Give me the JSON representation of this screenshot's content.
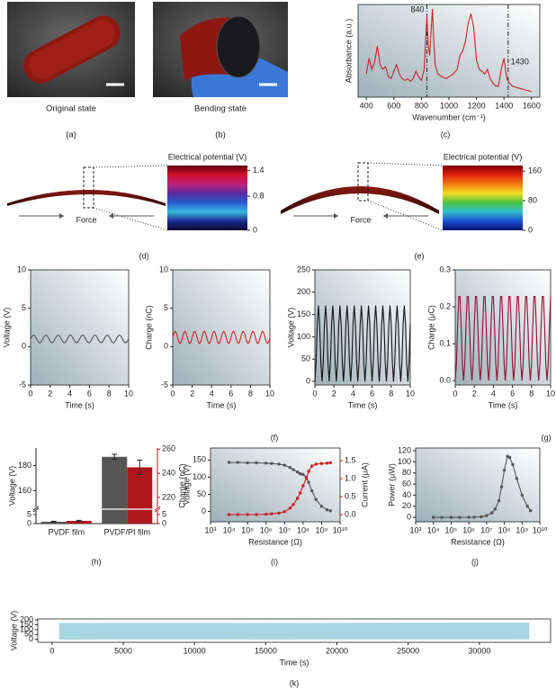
{
  "photos": [
    {
      "caption": "Original state",
      "label": "(a)"
    },
    {
      "caption": "Bending state",
      "label": "(b)"
    }
  ],
  "potential_maps": [
    {
      "title": "Electrical potential (V)",
      "force": "Force",
      "label": "(d)",
      "colorbar_lim": [
        0,
        1.52
      ],
      "colorbar_ticks": [
        0,
        0.8,
        1.4
      ],
      "colors": [
        "#5a0010",
        "#d0102a",
        "#c0207a",
        "#5a2aa0",
        "#2a5ad0",
        "#38b8e0",
        "#1a2a90",
        "#0a0a30"
      ]
    },
    {
      "title": "Electrical potential (V)",
      "force": "Force",
      "label": "(e)",
      "colorbar_lim": [
        0,
        175
      ],
      "colorbar_ticks": [
        0,
        80,
        160
      ],
      "colors": [
        "#7a0000",
        "#e02010",
        "#f07a10",
        "#f0e020",
        "#50c040",
        "#30c0d0",
        "#1a50d0",
        "#0a1070"
      ]
    }
  ],
  "chart_data": [
    {
      "type": "line",
      "label": "(c)",
      "xlabel": "Wavenumber (cm⁻¹)",
      "ylabel": "Absorbance (a.u.)",
      "color": "#c8202a",
      "x": [
        400,
        420,
        440,
        460,
        480,
        500,
        520,
        540,
        560,
        580,
        600,
        620,
        640,
        660,
        680,
        700,
        720,
        740,
        760,
        780,
        800,
        820,
        840,
        850,
        860,
        870,
        880,
        890,
        900,
        920,
        950,
        980,
        1000,
        1030,
        1060,
        1080,
        1100,
        1120,
        1140,
        1160,
        1180,
        1200,
        1220,
        1240,
        1260,
        1280,
        1300,
        1320,
        1340,
        1360,
        1380,
        1400,
        1420,
        1440,
        1460,
        1500,
        1550,
        1600
      ],
      "values": [
        0.25,
        0.42,
        0.3,
        0.38,
        0.55,
        0.35,
        0.3,
        0.33,
        0.22,
        0.2,
        0.28,
        0.35,
        0.25,
        0.2,
        0.18,
        0.2,
        0.17,
        0.2,
        0.28,
        0.22,
        0.18,
        0.3,
        0.88,
        0.55,
        0.45,
        0.7,
        0.95,
        0.6,
        0.35,
        0.25,
        0.22,
        0.2,
        0.22,
        0.25,
        0.3,
        0.45,
        0.5,
        0.6,
        0.8,
        0.9,
        0.75,
        0.4,
        0.3,
        0.28,
        0.25,
        0.3,
        0.2,
        0.15,
        0.12,
        0.12,
        0.3,
        0.42,
        0.2,
        0.15,
        0.12,
        0.1,
        0.08,
        0.06
      ],
      "xlim": [
        340,
        1660
      ],
      "ylim": [
        0,
        1
      ],
      "xticks": [
        400,
        600,
        800,
        1000,
        1200,
        1400,
        1600
      ],
      "vlines": [
        840,
        1430
      ]
    },
    {
      "type": "line",
      "xlabel": "Time (s)",
      "ylabel": "Voltage (V)",
      "color": "#555555",
      "x": [
        0,
        0.125,
        0.25,
        0.375,
        0.5,
        0.625,
        0.75,
        0.875,
        1,
        1.125,
        1.25,
        1.375,
        1.5,
        1.625,
        1.75,
        1.875,
        2,
        2.125,
        2.25,
        2.375,
        2.5,
        2.625,
        2.75,
        2.875,
        3,
        3.125,
        3.25,
        3.375,
        3.5,
        3.625,
        3.75,
        3.875,
        4,
        4.125,
        4.25,
        4.375,
        4.5,
        4.625,
        4.75,
        4.875,
        5,
        5.125,
        5.25,
        5.375,
        5.5,
        5.625,
        5.75,
        5.875,
        6,
        6.125,
        6.25,
        6.375,
        6.5,
        6.625,
        6.75,
        6.875,
        7,
        7.125,
        7.25,
        7.375,
        7.5,
        7.625,
        7.75,
        7.875,
        8,
        8.125,
        8.25,
        8.375,
        8.5,
        8.625,
        8.75,
        8.875,
        9,
        9.125,
        9.25,
        9.375,
        9.5,
        9.625,
        9.75,
        9.875,
        10
      ],
      "values": [
        1,
        1.29,
        1.48,
        1.48,
        1.29,
        1,
        0.71,
        0.52,
        0.52,
        0.71,
        1,
        1.29,
        1.48,
        1.48,
        1.29,
        1,
        0.71,
        0.52,
        0.52,
        0.71,
        1,
        1.29,
        1.48,
        1.48,
        1.29,
        1,
        0.71,
        0.52,
        0.52,
        0.71,
        1,
        1.29,
        1.48,
        1.48,
        1.29,
        1,
        0.71,
        0.52,
        0.52,
        0.71,
        1,
        1.29,
        1.48,
        1.48,
        1.29,
        1,
        0.71,
        0.52,
        0.52,
        0.71,
        1,
        1.29,
        1.48,
        1.48,
        1.29,
        1,
        0.71,
        0.52,
        0.52,
        0.71,
        1,
        1.29,
        1.48,
        1.48,
        1.29,
        1,
        0.71,
        0.52,
        0.52,
        0.71,
        1,
        1.29,
        1.48,
        1.48,
        1.29,
        1,
        0.71,
        0.52,
        0.52,
        0.71,
        1
      ],
      "xlim": [
        0,
        10
      ],
      "ylim": [
        -5,
        10
      ],
      "xticks": [
        0,
        2,
        4,
        6,
        8,
        10
      ],
      "yticks": [
        -5,
        0,
        5,
        10
      ]
    },
    {
      "type": "line",
      "label": "(f)",
      "xlabel": "Time (s)",
      "ylabel": "Charge (nC)",
      "color": "#d0202a",
      "x": [
        0,
        0.125,
        0.25,
        0.375,
        0.5,
        0.625,
        0.75,
        0.875,
        1,
        1.125,
        1.25,
        1.375,
        1.5,
        1.625,
        1.75,
        1.875,
        2,
        2.125,
        2.25,
        2.375,
        2.5,
        2.625,
        2.75,
        2.875,
        3,
        3.125,
        3.25,
        3.375,
        3.5,
        3.625,
        3.75,
        3.875,
        4,
        4.125,
        4.25,
        4.375,
        4.5,
        4.625,
        4.75,
        4.875,
        5,
        5.125,
        5.25,
        5.375,
        5.5,
        5.625,
        5.75,
        5.875,
        6,
        6.125,
        6.25,
        6.375,
        6.5,
        6.625,
        6.75,
        6.875,
        7,
        7.125,
        7.25,
        7.375,
        7.5,
        7.625,
        7.75,
        7.875,
        8,
        8.125,
        8.25,
        8.375,
        8.5,
        8.625,
        8.75,
        8.875,
        9,
        9.125,
        9.25,
        9.375,
        9.5,
        9.625,
        9.75,
        9.875,
        10
      ],
      "values": [
        1.2,
        1.77,
        2,
        1.77,
        1.2,
        0.63,
        0.4,
        0.63,
        1.2,
        1.77,
        2,
        1.77,
        1.2,
        0.63,
        0.4,
        0.63,
        1.2,
        1.77,
        2,
        1.77,
        1.2,
        0.63,
        0.4,
        0.63,
        1.2,
        1.77,
        2,
        1.77,
        1.2,
        0.63,
        0.4,
        0.63,
        1.2,
        1.77,
        2,
        1.77,
        1.2,
        0.63,
        0.4,
        0.63,
        1.2,
        1.77,
        2,
        1.77,
        1.2,
        0.63,
        0.4,
        0.63,
        1.2,
        1.77,
        2,
        1.77,
        1.2,
        0.63,
        0.4,
        0.63,
        1.2,
        1.77,
        2,
        1.77,
        1.2,
        0.63,
        0.4,
        0.63,
        1.2,
        1.77,
        2,
        1.77,
        1.2,
        0.63,
        0.4,
        0.63,
        1.2,
        1.77,
        2,
        1.77,
        1.2,
        0.63,
        0.4,
        0.63,
        1.2
      ],
      "xlim": [
        0,
        10
      ],
      "ylim": [
        -5,
        10
      ],
      "xticks": [
        0,
        2,
        4,
        6,
        8,
        10
      ],
      "yticks": [
        -5,
        0,
        5,
        10
      ]
    },
    {
      "type": "line",
      "xlabel": "Time (s)",
      "ylabel": "Voltage (V)",
      "color": "#111111",
      "x": [
        0,
        0.125,
        0.25,
        0.375,
        0.5,
        0.625,
        0.75,
        0.875,
        1,
        1.125,
        1.25,
        1.375,
        1.5,
        1.625,
        1.75,
        1.875,
        2,
        2.125,
        2.25,
        2.375,
        2.5,
        2.625,
        2.75,
        2.875,
        3,
        3.125,
        3.25,
        3.375,
        3.5,
        3.625,
        3.75,
        3.875,
        4,
        4.125,
        4.25,
        4.375,
        4.5,
        4.625,
        4.75,
        4.875,
        5,
        5.125,
        5.25,
        5.375,
        5.5,
        5.625,
        5.75,
        5.875,
        6,
        6.125,
        6.25,
        6.375,
        6.5,
        6.625,
        6.75,
        6.875,
        7,
        7.125,
        7.25,
        7.375,
        7.5,
        7.625,
        7.75,
        7.875,
        8,
        8.125,
        8.25,
        8.375,
        8.5,
        8.625,
        8.75,
        8.875,
        9,
        9.125,
        9.25,
        9.375,
        9.5,
        9.625,
        9.75,
        9.875,
        10
      ],
      "values": [
        0,
        42,
        128,
        170,
        128,
        42,
        0,
        42,
        128,
        170,
        128,
        42,
        0,
        42,
        128,
        170,
        128,
        42,
        0,
        42,
        128,
        170,
        128,
        42,
        0,
        42,
        128,
        170,
        128,
        42,
        0,
        42,
        128,
        170,
        128,
        42,
        0,
        42,
        128,
        170,
        128,
        42,
        0,
        42,
        128,
        170,
        128,
        42,
        0,
        42,
        128,
        170,
        128,
        42,
        0,
        42,
        128,
        170,
        128,
        42,
        0,
        42,
        128,
        170,
        128,
        42,
        0,
        42,
        128,
        170,
        128,
        42,
        0,
        42,
        128,
        170,
        128,
        42,
        0,
        42,
        128
      ],
      "xlim": [
        0,
        10
      ],
      "ylim": [
        -8,
        250
      ],
      "xticks": [
        0,
        2,
        4,
        6,
        8,
        10
      ],
      "yticks": [
        0,
        50,
        100,
        150,
        200,
        250
      ]
    },
    {
      "type": "line",
      "label": "(g)",
      "xlabel": "Time (s)",
      "ylabel": "Charge (μC)",
      "color": "#8a1030",
      "x": [
        0,
        0.125,
        0.25,
        0.375,
        0.5,
        0.625,
        0.75,
        0.875,
        1,
        1.125,
        1.25,
        1.375,
        1.5,
        1.625,
        1.75,
        1.875,
        2,
        2.125,
        2.25,
        2.375,
        2.5,
        2.625,
        2.75,
        2.875,
        3,
        3.125,
        3.25,
        3.375,
        3.5,
        3.625,
        3.75,
        3.875,
        4,
        4.125,
        4.25,
        4.375,
        4.5,
        4.625,
        4.75,
        4.875,
        5,
        5.125,
        5.25,
        5.375,
        5.5,
        5.625,
        5.75,
        5.875,
        6,
        6.125,
        6.25,
        6.375,
        6.5,
        6.625,
        6.75,
        6.875,
        7,
        7.125,
        7.25,
        7.375,
        7.5,
        7.625,
        7.75,
        7.875,
        8,
        8.125,
        8.25,
        8.375,
        8.5,
        8.625,
        8.75,
        8.875,
        9,
        9.125,
        9.25,
        9.375,
        9.5,
        9.625,
        9.75,
        9.875,
        10
      ],
      "values": [
        0,
        0.045,
        0.147,
        0.228,
        0.228,
        0.147,
        0.045,
        0,
        0.045,
        0.147,
        0.228,
        0.228,
        0.147,
        0.045,
        0,
        0.045,
        0.147,
        0.228,
        0.228,
        0.147,
        0.045,
        0,
        0.045,
        0.147,
        0.228,
        0.228,
        0.147,
        0.045,
        0,
        0.045,
        0.147,
        0.228,
        0.228,
        0.147,
        0.045,
        0,
        0.045,
        0.147,
        0.228,
        0.228,
        0.147,
        0.045,
        0,
        0.045,
        0.147,
        0.228,
        0.228,
        0.147,
        0.045,
        0,
        0.045,
        0.147,
        0.228,
        0.228,
        0.147,
        0.045,
        0,
        0.045,
        0.147,
        0.228,
        0.228,
        0.147,
        0.045,
        0,
        0.045,
        0.147,
        0.228,
        0.228,
        0.147,
        0.045,
        0,
        0.045,
        0.147,
        0.228,
        0.228,
        0.147,
        0.045,
        0,
        0.045,
        0.147,
        0.228
      ],
      "xlim": [
        0,
        10
      ],
      "ylim": [
        -0.012,
        0.3
      ],
      "xticks": [
        0,
        2,
        4,
        6,
        8,
        10
      ],
      "yticks": [
        {
          "value": 0,
          "label": "0.0"
        },
        0.1,
        0.2,
        0.3
      ]
    },
    {
      "type": "bar",
      "label": "(h)",
      "ylabel": "Voltage (V)",
      "y2label": "Charge (nC)",
      "categories": [
        "PVDF film",
        "PVDF/PI film"
      ],
      "series": [
        {
          "color": "#555555",
          "values": [
            1,
            187
          ],
          "errors": [
            0.3,
            2
          ]
        },
        {
          "color": "#b0151e",
          "axis": "y2",
          "values": [
            1.5,
            245
          ],
          "errors": [
            0.3,
            6
          ]
        }
      ],
      "ylim": [
        0,
        194
      ],
      "ybreak": [
        7,
        146
      ],
      "yticks": [
        0,
        5,
        160,
        180
      ],
      "y2lim": [
        0,
        261
      ],
      "y2break": [
        7,
        211
      ],
      "y2ticks": [
        0,
        5,
        220,
        240,
        260
      ]
    },
    {
      "type": "line",
      "label": "(i)",
      "xlabel": "Resistance (Ω)",
      "ylabel": "Voltage (V)",
      "y2label": "Current (μA)",
      "xscale": "log",
      "markers": true,
      "x": [
        10000,
        30000,
        100000,
        300000,
        1000000,
        2000000,
        5000000,
        10000000,
        20000000,
        30000000,
        50000000,
        70000000,
        100000000,
        150000000,
        200000000,
        300000000,
        500000000,
        1000000000,
        2000000000,
        3000000000
      ],
      "series": [
        {
          "color": "#555555",
          "values": [
            143,
            143,
            142,
            142,
            141,
            140,
            138,
            135,
            128,
            122,
            115,
            110,
            108,
            100,
            85,
            60,
            35,
            15,
            5,
            2
          ]
        },
        {
          "color": "#cc1f1f",
          "axis": "y2",
          "values": [
            0,
            0,
            0,
            0,
            0.01,
            0.02,
            0.04,
            0.08,
            0.18,
            0.28,
            0.45,
            0.6,
            0.8,
            1,
            1.2,
            1.35,
            1.4,
            1.42,
            1.43,
            1.44
          ]
        }
      ],
      "xlim": [
        1000,
        10000000000
      ],
      "ylim": [
        -30,
        185
      ],
      "y2lim": [
        -0.2,
        1.85
      ],
      "xticks": [
        {
          "value": 1000,
          "label": "10³"
        },
        {
          "value": 10000,
          "label": "10⁴"
        },
        {
          "value": 100000,
          "label": "10⁵"
        },
        {
          "value": 1000000,
          "label": "10⁶"
        },
        {
          "value": 10000000,
          "label": "10⁷"
        },
        {
          "value": 100000000,
          "label": "10⁸"
        },
        {
          "value": 1000000000,
          "label": "10⁹"
        },
        {
          "value": 10000000000,
          "label": "10¹⁰"
        }
      ],
      "yticks": [
        0,
        50,
        100,
        150
      ],
      "y2ticks": [
        {
          "value": 0,
          "label": "0.0"
        },
        0.5,
        {
          "value": 1,
          "label": "1.0"
        },
        1.5
      ]
    },
    {
      "type": "line",
      "label": "(j)",
      "xlabel": "Resistance (Ω)",
      "ylabel": "Power (μW)",
      "xscale": "log",
      "markers": true,
      "x": [
        10000,
        30000,
        100000,
        300000,
        1000000,
        2000000,
        5000000,
        10000000,
        20000000,
        30000000,
        50000000,
        70000000,
        100000000,
        150000000,
        200000000,
        300000000,
        500000000,
        1000000000,
        2000000000,
        3000000000
      ],
      "series": [
        {
          "color": "#555555",
          "values": [
            0,
            0,
            0,
            0,
            0.1,
            0.3,
            1,
            3,
            8,
            15,
            30,
            55,
            85,
            110,
            108,
            95,
            70,
            40,
            20,
            12
          ]
        }
      ],
      "xlim": [
        1000,
        10000000000
      ],
      "ylim": [
        -8,
        125
      ],
      "xticks": [
        {
          "value": 1000,
          "label": "10³"
        },
        {
          "value": 10000,
          "label": "10⁴"
        },
        {
          "value": 100000,
          "label": "10⁵"
        },
        {
          "value": 1000000,
          "label": "10⁶"
        },
        {
          "value": 10000000,
          "label": "10⁷"
        },
        {
          "value": 100000000,
          "label": "10⁸"
        },
        {
          "value": 1000000000,
          "label": "10⁹"
        },
        {
          "value": 10000000000,
          "label": "10¹⁰"
        }
      ],
      "yticks": [
        0,
        20,
        40,
        60,
        80,
        100,
        120
      ]
    },
    {
      "type": "band",
      "label": "(k)",
      "xlabel": "Time (s)",
      "ylabel": "Voltage (V)",
      "color": "#a9d4e4",
      "x": [
        500,
        5000,
        10000,
        15000,
        20000,
        25000,
        30000,
        33500
      ],
      "high": [
        168,
        170,
        170,
        169,
        170,
        171,
        172,
        172
      ],
      "low": [
        -2,
        0,
        0,
        -1,
        0,
        0,
        0,
        1
      ],
      "xlim": [
        -1000,
        35000
      ],
      "ylim": [
        -30,
        210
      ],
      "xticks": [
        0,
        5000,
        10000,
        15000,
        20000,
        25000,
        30000
      ],
      "yticks": [
        0,
        50,
        100,
        150,
        200
      ]
    }
  ]
}
